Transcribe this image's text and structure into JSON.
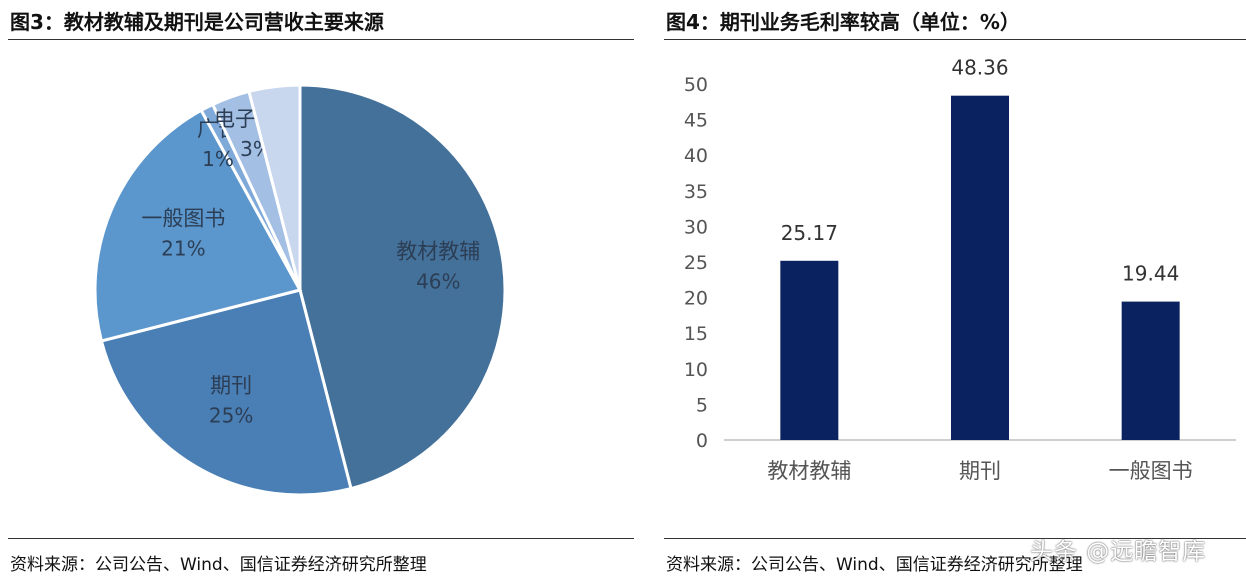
{
  "left_figure": {
    "title": "图3：教材教辅及期刊是公司营收主要来源",
    "source": "资料来源：公司公告、Wind、国信证券经济研究所整理"
  },
  "right_figure": {
    "title": "图4：期刊业务毛利率较高（单位：%）",
    "source": "资料来源：公司公告、Wind、国信证券经济研究所整理"
  },
  "watermark": "头条 @远瞻智库",
  "chart_data": [
    {
      "type": "pie",
      "title": "图3：教材教辅及期刊是公司营收主要来源",
      "slices": [
        {
          "name": "教材教辅",
          "value": 46,
          "label": "46%",
          "color": "#44719a"
        },
        {
          "name": "期刊",
          "value": 25,
          "label": "25%",
          "color": "#4a7fb5"
        },
        {
          "name": "一般图书",
          "value": 21,
          "label": "21%",
          "color": "#5b97cc"
        },
        {
          "name": "广告",
          "value": 1,
          "label": "1%",
          "color": "#7fa9d8"
        },
        {
          "name": "电子产品",
          "value": 3,
          "label": "3%",
          "color": "#a3bfe4"
        },
        {
          "name": "",
          "value": 4,
          "label": "",
          "color": "#c9d7ee"
        }
      ],
      "legend": "none"
    },
    {
      "type": "bar",
      "title": "图4：期刊业务毛利率较高（单位：%）",
      "categories": [
        "教材教辅",
        "期刊",
        "一般图书"
      ],
      "values": [
        25.17,
        48.36,
        19.44
      ],
      "value_labels": [
        "25.17",
        "48.36",
        "19.44"
      ],
      "ylim": [
        0,
        50
      ],
      "yticks": [
        "0",
        "5",
        "10",
        "15",
        "20",
        "25",
        "30",
        "35",
        "40",
        "45",
        "50"
      ],
      "grid": false,
      "color": "#0b2260"
    }
  ]
}
